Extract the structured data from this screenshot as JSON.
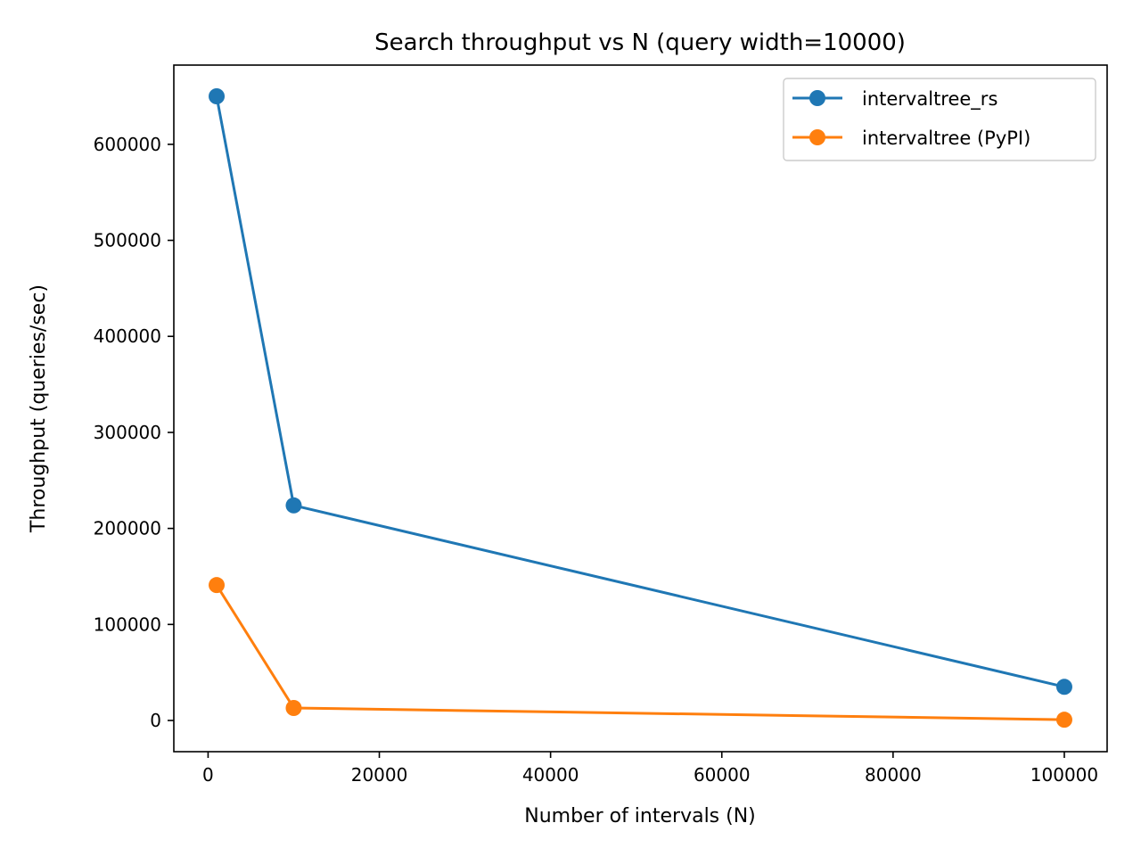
{
  "chart_data": {
    "type": "line",
    "title": "Search throughput vs N (query width=10000)",
    "xlabel": "Number of intervals (N)",
    "ylabel": "Throughput (queries/sec)",
    "xlim": [
      -4000,
      105000
    ],
    "ylim": [
      -32500,
      682500
    ],
    "x_ticks": [
      0,
      20000,
      40000,
      60000,
      80000,
      100000
    ],
    "y_ticks": [
      0,
      100000,
      200000,
      300000,
      400000,
      500000,
      600000
    ],
    "grid": false,
    "legend": "top-right",
    "x": [
      1000,
      10000,
      100000
    ],
    "series": [
      {
        "name": "intervaltree_rs",
        "color": "#1f77b4",
        "values": [
          650000,
          224000,
          35000
        ]
      },
      {
        "name": "intervaltree (PyPI)",
        "color": "#ff7f0e",
        "values": [
          141000,
          13000,
          800
        ]
      }
    ]
  }
}
